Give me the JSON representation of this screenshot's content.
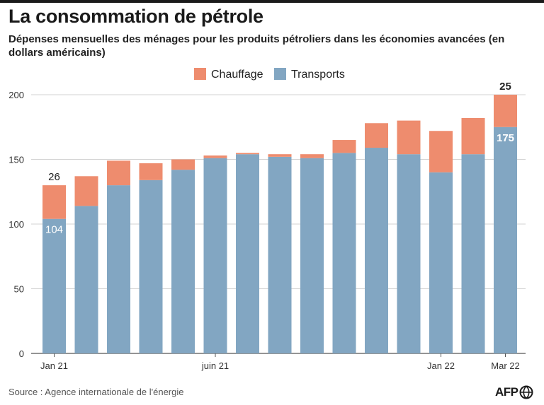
{
  "header": {
    "title": "La consommation de pétrole",
    "subtitle": "Dépenses mensuelles des ménages pour les produits pétroliers dans les économies avancées (en dollars américains)"
  },
  "footer": {
    "source": "Source : Agence internationale de l'énergie",
    "logo_text": "AFP"
  },
  "colors": {
    "heating": "#ee8c6e",
    "transport": "#82a6c2",
    "grid": "#d3d3d3",
    "axis": "#555555"
  },
  "chart_data": {
    "type": "bar",
    "stacked": true,
    "categories": [
      "Jan 21",
      "",
      "",
      "",
      "",
      "juin 21",
      "",
      "",
      "",
      "",
      "",
      "",
      "Jan 22",
      "",
      "Mar 22"
    ],
    "series": [
      {
        "name": "Transports",
        "values": [
          104,
          114,
          130,
          134,
          142,
          151,
          154,
          152,
          151,
          155,
          159,
          154,
          140,
          154,
          175
        ]
      },
      {
        "name": "Chauffage",
        "values": [
          26,
          23,
          19,
          13,
          8,
          2,
          1,
          2,
          3,
          10,
          19,
          26,
          32,
          28,
          25
        ]
      }
    ],
    "ylim": [
      0,
      200
    ],
    "yticks": [
      0,
      50,
      100,
      150,
      200
    ],
    "grid": true,
    "legend_position": "top-center",
    "legend_order": [
      "Chauffage",
      "Transports"
    ],
    "data_labels": [
      {
        "index": 0,
        "series": "Chauffage",
        "text": "26",
        "bold": false
      },
      {
        "index": 0,
        "series": "Transports",
        "text": "104",
        "bold": false
      },
      {
        "index": 14,
        "series": "Chauffage",
        "text": "25",
        "bold": true
      },
      {
        "index": 14,
        "series": "Transports",
        "text": "175",
        "bold": true
      }
    ]
  }
}
